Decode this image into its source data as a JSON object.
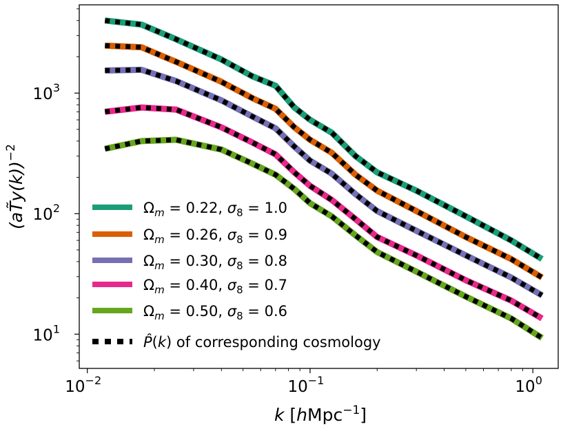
{
  "chart_data": {
    "type": "line",
    "xscale": "log",
    "yscale": "log",
    "xlim": [
      0.0092,
      1.3
    ],
    "ylim": [
      5.2,
      5400
    ],
    "xlabel": {
      "var": "k",
      "open": "[",
      "unit": "h",
      "unit2": "Mpc",
      "exp": "−1",
      "close": "]"
    },
    "ylabel": {
      "text": "(aT̃y(k))",
      "exp": "−2"
    },
    "xticks": [
      {
        "value": 0.01,
        "base": "10",
        "exp": "−2"
      },
      {
        "value": 0.1,
        "base": "10",
        "exp": "−1"
      },
      {
        "value": 1,
        "base": "10",
        "exp": "0"
      }
    ],
    "yticks": [
      {
        "value": 10,
        "base": "10",
        "exp": "1"
      },
      {
        "value": 100,
        "base": "10",
        "exp": "2"
      },
      {
        "value": 1000,
        "base": "10",
        "exp": "3"
      }
    ],
    "x": [
      0.012,
      0.0175,
      0.025,
      0.04,
      0.055,
      0.07,
      0.085,
      0.1,
      0.125,
      0.16,
      0.2,
      0.3,
      0.5,
      0.8,
      1.1
    ],
    "series": [
      {
        "name": "Ωm = 0.22, σ8 = 1.0",
        "omega": "0.22",
        "sigma": "1.0",
        "color": "#1b9e77",
        "values": [
          4000,
          3700,
          2800,
          1900,
          1380,
          1150,
          760,
          600,
          470,
          300,
          220,
          155,
          95,
          60,
          42
        ]
      },
      {
        "name": "Ωm = 0.26, σ8 = 0.9",
        "omega": "0.26",
        "sigma": "0.9",
        "color": "#d95f02",
        "values": [
          2480,
          2400,
          1820,
          1240,
          910,
          740,
          520,
          410,
          320,
          210,
          155,
          105,
          64,
          42,
          29.5
        ]
      },
      {
        "name": "Ωm = 0.30, σ8 = 0.8",
        "omega": "0.30",
        "sigma": "0.8",
        "color": "#7570b3",
        "values": [
          1540,
          1560,
          1260,
          870,
          640,
          510,
          360,
          275,
          215,
          145,
          105,
          72,
          45,
          29.5,
          21
        ]
      },
      {
        "name": "Ωm = 0.40, σ8 = 0.7",
        "omega": "0.40",
        "sigma": "0.7",
        "color": "#e7298a",
        "values": [
          700,
          760,
          730,
          520,
          390,
          310,
          220,
          170,
          130,
          90,
          64,
          45,
          28,
          19,
          13.5
        ]
      },
      {
        "name": "Ωm = 0.50, σ8 = 0.6",
        "omega": "0.50",
        "sigma": "0.6",
        "color": "#66a61e",
        "values": [
          345,
          400,
          410,
          340,
          260,
          210,
          160,
          122,
          95,
          66,
          48,
          33,
          20.5,
          13.5,
          9.3
        ]
      }
    ],
    "overlay": {
      "name": "P̂(k) of corresponding cosmology",
      "label_rest": "of corresponding cosmology",
      "color": "#000000",
      "style": "dotted"
    },
    "legend": "lower-left"
  }
}
